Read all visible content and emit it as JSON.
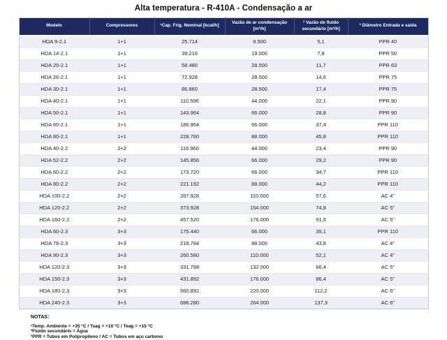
{
  "title": "Alta temperatura - R-410A - Condensação a ar",
  "colors": {
    "header_bg": "#1d2a62",
    "header_divider": "#45549a",
    "row_alt": "#edeff5"
  },
  "table": {
    "columns": [
      {
        "key": "modelo",
        "label": "Modelo"
      },
      {
        "key": "compressores",
        "label": "Compressores"
      },
      {
        "key": "cap-frig-nominal",
        "label": "¹Cap. Frig. Nominal [kcal/h]"
      },
      {
        "key": "vazao-ar-condensacao",
        "label": "Vazão de ar condensação [m³/h]"
      },
      {
        "key": "vazao-fluido-secundario",
        "label": "² Vazão de fluído secundário [m³/h]"
      },
      {
        "key": "diametro-entrada-saida",
        "label": "³ Diâmetro Entrada e saída"
      }
    ],
    "rows": [
      [
        "HDA 9-2.1",
        "1+1",
        "25.714",
        "9.500",
        "5,1",
        "PPR 40"
      ],
      [
        "HDA 14-2.1",
        "1+1",
        "39.216",
        "19.000",
        "7,8",
        "PPR 50"
      ],
      [
        "HDA 20-2.1",
        "1+1",
        "58.480",
        "28.500",
        "11,7",
        "PPR 63"
      ],
      [
        "HDA 26-2.1",
        "1+1",
        "72.928",
        "28.500",
        "14,6",
        "PPR 75"
      ],
      [
        "HDA 30-2.1",
        "1+1",
        "86.860",
        "28.500",
        "17,4",
        "PPR 75"
      ],
      [
        "HDA 40-2.1",
        "1+1",
        "110.596",
        "44.000",
        "22,1",
        "PPR 90"
      ],
      [
        "HDA 50-2.1",
        "1+1",
        "143.964",
        "66.000",
        "28,8",
        "PPR 90"
      ],
      [
        "HDA 60-2.1",
        "1+1",
        "186.964",
        "66.000",
        "37,4",
        "PPR 110"
      ],
      [
        "HDA 80-2.1",
        "1+1",
        "228.760",
        "88.000",
        "45,8",
        "PPR 110"
      ],
      [
        "HDA 40-2.2",
        "2+2",
        "116.960",
        "44.000",
        "23,4",
        "PPR 90"
      ],
      [
        "HDA 52-2.2",
        "2+2",
        "145.856",
        "66.000",
        "29,2",
        "PPR 90"
      ],
      [
        "HDA 60-2.2",
        "2+2",
        "173.720",
        "66.000",
        "34,7",
        "PPR 110"
      ],
      [
        "HDA 80-2.2",
        "2+2",
        "221.192",
        "88.000",
        "44,2",
        "PPR 110"
      ],
      [
        "HDA 100-2.2",
        "2+2",
        "287.928",
        "110.000",
        "57,6",
        "AC 4\""
      ],
      [
        "HDA 120-2.2",
        "2+2",
        "373.928",
        "154.000",
        "74,8",
        "AC 5\""
      ],
      [
        "HDA 160-2.2",
        "2+2",
        "457.520",
        "176.000",
        "91,5",
        "AC 5\""
      ],
      [
        "HDA 60-2.3",
        "3+3",
        "175.440",
        "66.000",
        "35,1",
        "PPR 110"
      ],
      [
        "HDA 78-2.3",
        "3+3",
        "218.784",
        "88.000",
        "43,8",
        "AC 4\""
      ],
      [
        "HDA 90-2.3",
        "3+3",
        "260.580",
        "110.000",
        "52,1",
        "AC 4\""
      ],
      [
        "HDA 120-2.3",
        "3+3",
        "331.788",
        "132.000",
        "66,4",
        "AC 5\""
      ],
      [
        "HDA 150-2.3",
        "3+3",
        "431.892",
        "176.000",
        "86,4",
        "AC 5\""
      ],
      [
        "HDA 180-2.3",
        "3+3",
        "560.892",
        "220.000",
        "112,2",
        "AC 6\""
      ],
      [
        "HDA 240-2.3",
        "3+3",
        "686.280",
        "264.000",
        "137,3",
        "AC 6\""
      ]
    ]
  },
  "notes": {
    "heading": "NOTAS:",
    "items": [
      "¹Temp. Ambiente = +35 °C / Tsag = +10 °C / Teag = +15 °C",
      "²Fluído secundário = Água",
      "³PPR = Tubos em Polipropileno / AC = Tubos em aço carbono"
    ]
  }
}
